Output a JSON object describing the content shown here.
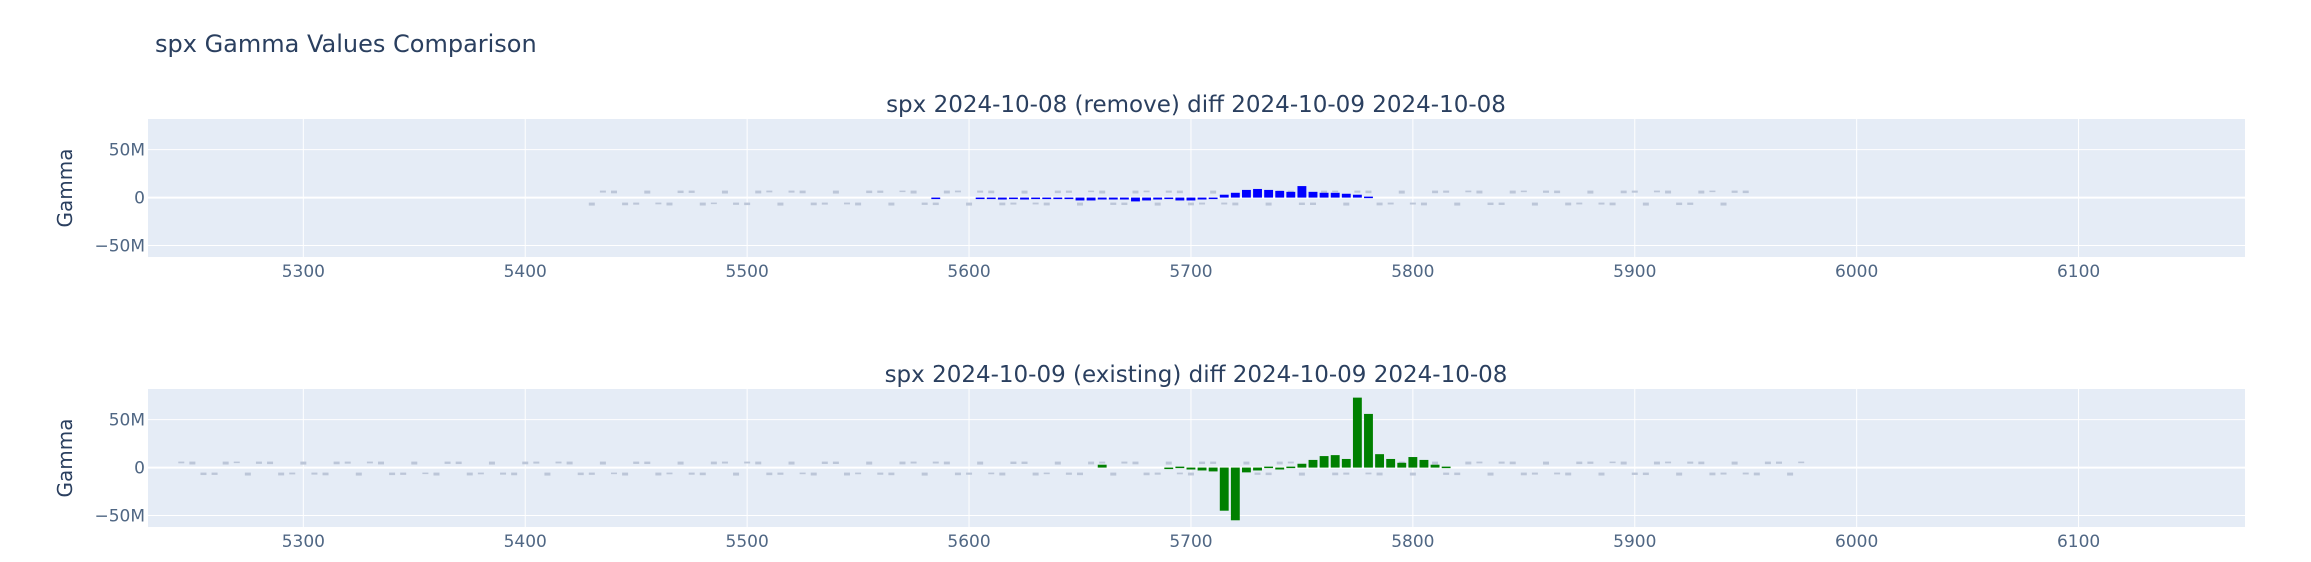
{
  "title": "spx Gamma Values Comparison",
  "colors": {
    "plot_bg": "#e5ecf6",
    "grid": "#ffffff",
    "remove": "#0000ff",
    "existing": "#008000",
    "ticks": "#506784"
  },
  "chart_data": [
    {
      "type": "bar",
      "title": "spx 2024-10-08 (remove) diff 2024-10-09 2024-10-08",
      "ylabel": "Gamma",
      "color": "#0000ff",
      "xlim": [
        5230,
        6175
      ],
      "ylim": [
        -62,
        82
      ],
      "xticks": [
        5300,
        5400,
        5500,
        5600,
        5700,
        5800,
        5900,
        6000,
        6100
      ],
      "xtick_labels": [
        "5300",
        "5400",
        "5500",
        "5600",
        "5700",
        "5800",
        "5900",
        "6000",
        "6100"
      ],
      "yticks": [
        -50,
        0,
        50
      ],
      "ytick_labels": [
        "−50M",
        "0",
        "50M"
      ],
      "x": [
        5585,
        5605,
        5610,
        5615,
        5620,
        5625,
        5630,
        5635,
        5640,
        5645,
        5650,
        5655,
        5660,
        5665,
        5670,
        5675,
        5680,
        5685,
        5690,
        5695,
        5700,
        5705,
        5710,
        5715,
        5720,
        5725,
        5730,
        5735,
        5740,
        5745,
        5750,
        5755,
        5760,
        5765,
        5770,
        5775,
        5780
      ],
      "values": [
        -1,
        -1,
        -1,
        -2,
        -1,
        -2,
        -1,
        -1,
        -1,
        -1,
        -3,
        -3,
        -2,
        -2,
        -2,
        -4,
        -3,
        -2,
        -1,
        -3,
        -3,
        -2,
        -1,
        3,
        5,
        8,
        9,
        8,
        7,
        6,
        12,
        6,
        5,
        5,
        4,
        3,
        1
      ]
    },
    {
      "type": "bar",
      "title": "spx 2024-10-09 (existing) diff 2024-10-09 2024-10-08",
      "ylabel": "Gamma",
      "color": "#008000",
      "xlim": [
        5230,
        6175
      ],
      "ylim": [
        -62,
        82
      ],
      "xticks": [
        5300,
        5400,
        5500,
        5600,
        5700,
        5800,
        5900,
        6000,
        6100
      ],
      "xtick_labels": [
        "5300",
        "5400",
        "5500",
        "5600",
        "5700",
        "5800",
        "5900",
        "6000",
        "6100"
      ],
      "yticks": [
        -50,
        0,
        50
      ],
      "ytick_labels": [
        "−50M",
        "0",
        "50M"
      ],
      "x": [
        5660,
        5690,
        5695,
        5700,
        5705,
        5710,
        5715,
        5720,
        5725,
        5730,
        5735,
        5740,
        5745,
        5750,
        5755,
        5760,
        5765,
        5770,
        5775,
        5780,
        5785,
        5790,
        5795,
        5800,
        5805,
        5810,
        5815
      ],
      "values": [
        3,
        -1,
        1,
        -2,
        -3,
        -4,
        -45,
        -55,
        -5,
        -3,
        1,
        -2,
        1,
        4,
        8,
        12,
        13,
        9,
        73,
        56,
        14,
        9,
        5,
        11,
        8,
        3,
        1
      ]
    }
  ]
}
